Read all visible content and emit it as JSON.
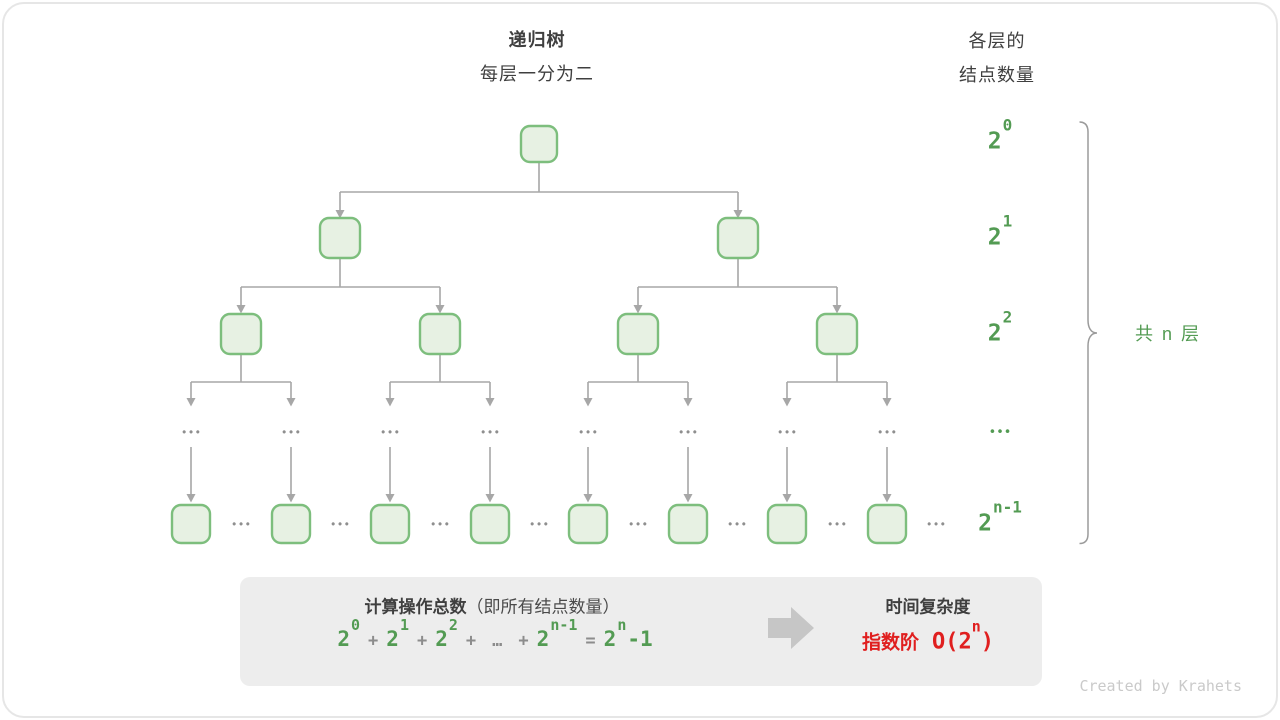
{
  "colors": {
    "green": "#539B53",
    "dark": "#3F3F3F",
    "line": "#A7A7A7",
    "dotgray": "#8F8F8F",
    "nodefill": "#E7F1E3",
    "nodeborder": "#7DBE7D",
    "boxbg": "#EDEDED",
    "opgray": "#8C8C8C",
    "red": "#E01F1F",
    "arrowgray": "#C6C6C6",
    "wm": "#CACACA",
    "border": "#E6E6E6",
    "brace": "#9B9B9B"
  },
  "header": {
    "title": "递归树",
    "subtitle": "每层一分为二",
    "right_title_line1": "各层的",
    "right_title_line2": "结点数量"
  },
  "tree": {
    "ellipsis": "•••"
  },
  "levels": [
    {
      "base": "2",
      "sup": "0"
    },
    {
      "base": "2",
      "sup": "1"
    },
    {
      "base": "2",
      "sup": "2"
    },
    {
      "ellipsis": "•••"
    },
    {
      "base": "2",
      "sup": "n-1"
    }
  ],
  "brace_label": "共 n 层",
  "summary": {
    "title": "计算操作总数",
    "title_note": "（即所有结点数量）",
    "formula": [
      {
        "base": "2",
        "sup": "0"
      },
      {
        "op": "+"
      },
      {
        "base": "2",
        "sup": "1"
      },
      {
        "op": "+"
      },
      {
        "base": "2",
        "sup": "2"
      },
      {
        "op": "+"
      },
      {
        "op": "…"
      },
      {
        "op": "+"
      },
      {
        "base": "2",
        "sup": "n-1"
      },
      {
        "op": "="
      },
      {
        "base": "2",
        "sup": "n",
        "tail": "-1"
      }
    ],
    "complexity_title": "时间复杂度",
    "complexity_prefix": "指数阶",
    "complexity_base": "O(2",
    "complexity_sup": "n",
    "complexity_close": ")"
  },
  "watermark": "Created by Krahets"
}
